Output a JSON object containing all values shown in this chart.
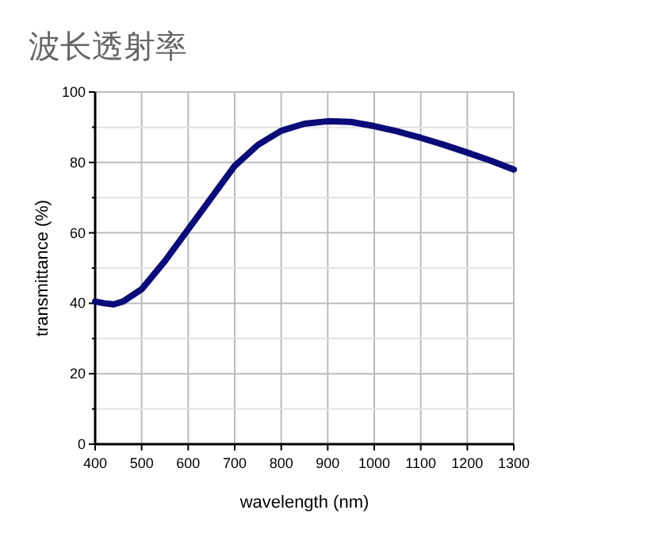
{
  "chart_data": {
    "type": "line",
    "title": "波长透射率",
    "xlabel": "wavelength (nm)",
    "ylabel": "transmittance (%)",
    "x": [
      400,
      420,
      440,
      460,
      500,
      550,
      600,
      650,
      700,
      750,
      800,
      850,
      900,
      950,
      1000,
      1050,
      1100,
      1150,
      1200,
      1250,
      1300
    ],
    "series": [
      {
        "color": "#0a0a78",
        "values": [
          40.5,
          40,
          39.7,
          40.5,
          44,
          52,
          61,
          70,
          79,
          85,
          89,
          91,
          91.7,
          91.5,
          90.3,
          88.8,
          87,
          85,
          82.8,
          80.5,
          78
        ]
      }
    ],
    "xlim": [
      400,
      1300
    ],
    "xticks": [
      400,
      500,
      600,
      700,
      800,
      900,
      1000,
      1100,
      1200,
      1300
    ],
    "ylim": [
      0,
      100
    ],
    "yticks": [
      0,
      {
        "value": 10,
        "label": null
      },
      20,
      {
        "value": 30,
        "label": null
      },
      40,
      {
        "value": 50,
        "label": null
      },
      60,
      {
        "value": 70,
        "label": null
      },
      80,
      {
        "value": 90,
        "label": null
      },
      100
    ],
    "grid": true,
    "line_style": "solid"
  }
}
